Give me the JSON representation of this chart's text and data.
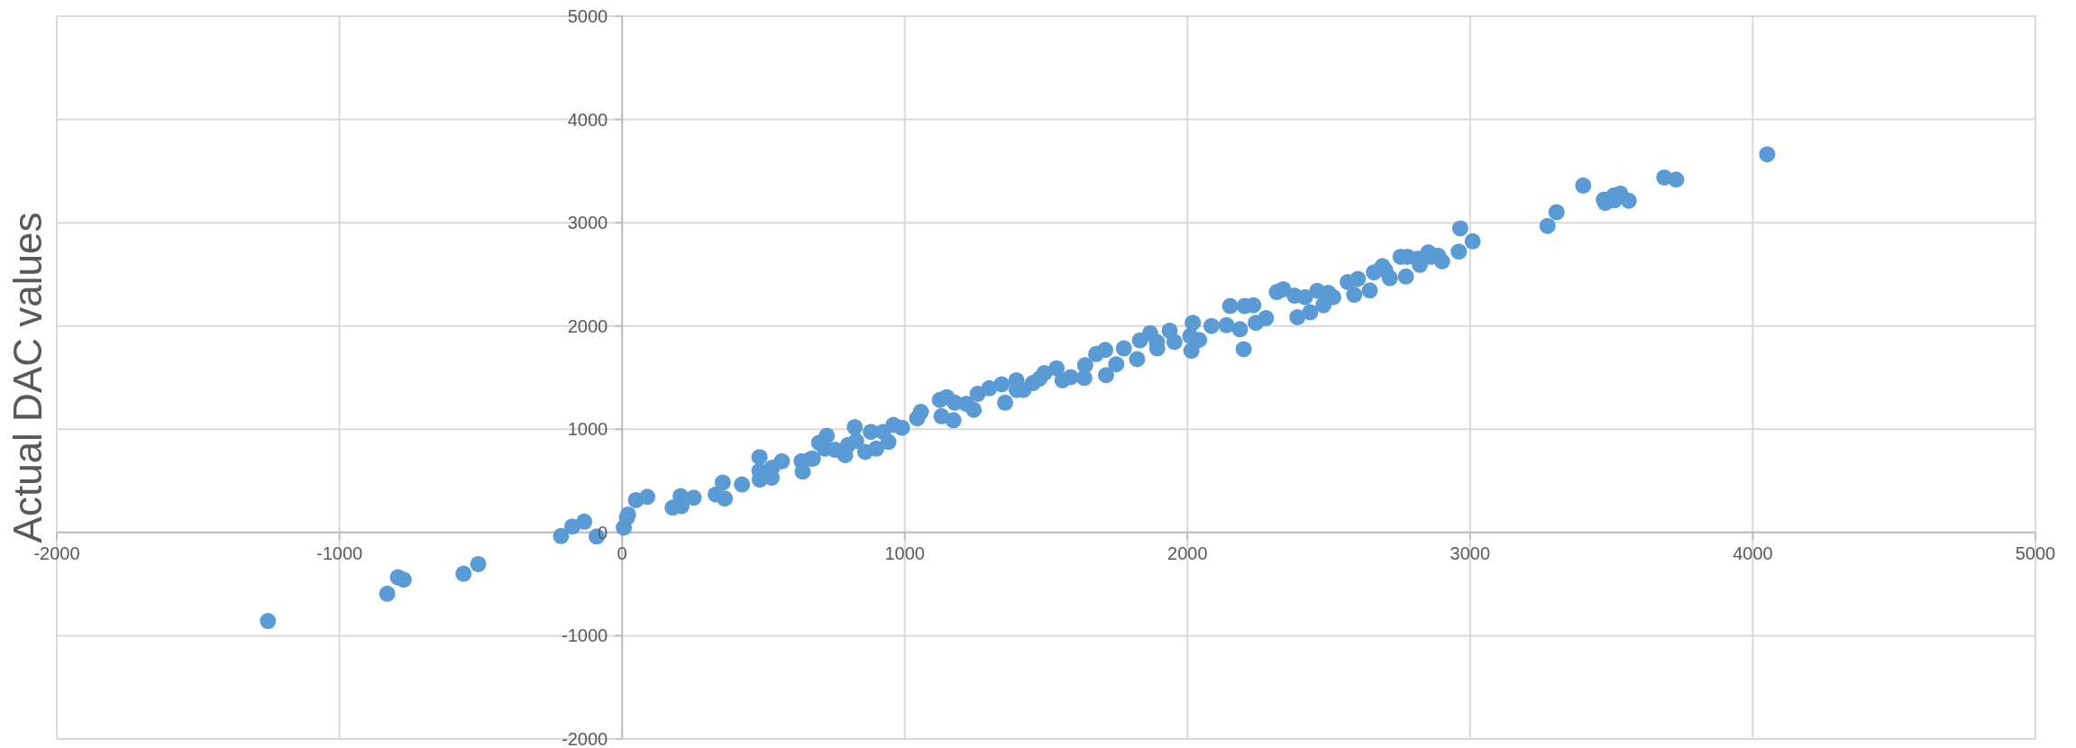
{
  "chart_data": {
    "type": "scatter",
    "ylabel": "Actual DAC values",
    "xlim": [
      -2000,
      5000
    ],
    "ylim": [
      -2000,
      5000
    ],
    "xticks": [
      -2000,
      -1000,
      0,
      1000,
      2000,
      3000,
      4000,
      5000
    ],
    "yticks": [
      -2000,
      -1000,
      0,
      1000,
      2000,
      3000,
      4000,
      5000
    ],
    "grid": true,
    "marker": "circle",
    "series": [
      {
        "color": "#5b9bd5",
        "x": [
          -1253,
          -831,
          -793,
          -773,
          -561,
          -509,
          -216,
          -176,
          -134,
          -90,
          6,
          17,
          21,
          49,
          89,
          179,
          210,
          207,
          253,
          331,
          356,
          363,
          424,
          487,
          486,
          486,
          529,
          531,
          565,
          635,
          639,
          670,
          675,
          697,
          724,
          718,
          754,
          789,
          799,
          823,
          828,
          860,
          880,
          899,
          923,
          942,
          960,
          990,
          1044,
          1057,
          1124,
          1130,
          1148,
          1172,
          1177,
          1218,
          1244,
          1258,
          1299,
          1343,
          1355,
          1395,
          1396,
          1420,
          1453,
          1476,
          1494,
          1537,
          1558,
          1587,
          1635,
          1638,
          1677,
          1709,
          1712,
          1748,
          1775,
          1822,
          1832,
          1868,
          1892,
          1893,
          1937,
          1954,
          2014,
          2019,
          2010,
          2041,
          2085,
          2138,
          2151,
          2186,
          2199,
          2202,
          2233,
          2242,
          2278,
          2316,
          2339,
          2379,
          2389,
          2416,
          2434,
          2459,
          2481,
          2498,
          2516,
          2567,
          2590,
          2603,
          2645,
          2660,
          2690,
          2700,
          2716,
          2754,
          2778,
          2773,
          2815,
          2822,
          2852,
          2861,
          2887,
          2901,
          2960,
          2965,
          3009,
          3274,
          3306,
          3400,
          3473,
          3478,
          3508,
          3531,
          3510,
          3561,
          3687,
          3729,
          4051
        ],
        "values": [
          -857,
          -593,
          -434,
          -457,
          -399,
          -306,
          -35,
          58,
          105,
          -39,
          47,
          143,
          174,
          314,
          345,
          240,
          256,
          353,
          337,
          368,
          484,
          329,
          465,
          512,
          597,
          730,
          531,
          628,
          690,
          690,
          589,
          715,
          716,
          870,
          936,
          812,
          801,
          750,
          847,
          1021,
          886,
          781,
          975,
          812,
          975,
          878,
          1041,
          1014,
          1106,
          1168,
          1284,
          1126,
          1311,
          1087,
          1257,
          1246,
          1188,
          1342,
          1397,
          1435,
          1257,
          1474,
          1381,
          1381,
          1447,
          1489,
          1544,
          1590,
          1474,
          1505,
          1497,
          1621,
          1729,
          1768,
          1524,
          1629,
          1783,
          1679,
          1861,
          1930,
          1845,
          1783,
          1954,
          1845,
          1760,
          2031,
          1903,
          1865,
          2000,
          2008,
          2193,
          1969,
          1776,
          2193,
          2201,
          2031,
          2077,
          2329,
          2356,
          2294,
          2085,
          2279,
          2132,
          2340,
          2201,
          2321,
          2279,
          2426,
          2302,
          2456,
          2344,
          2520,
          2580,
          2540,
          2464,
          2670,
          2670,
          2479,
          2653,
          2593,
          2713,
          2670,
          2680,
          2626,
          2720,
          2945,
          2820,
          2969,
          3102,
          3361,
          3223,
          3193,
          3263,
          3283,
          3217,
          3213,
          3438,
          3418,
          3663
        ]
      }
    ]
  }
}
